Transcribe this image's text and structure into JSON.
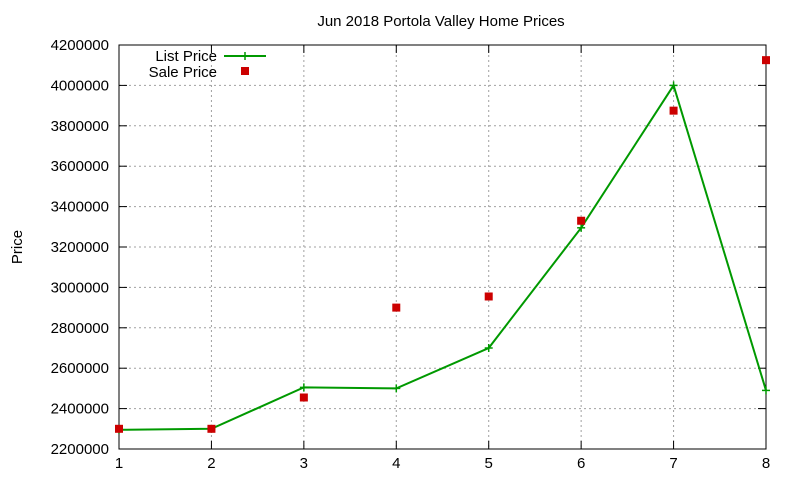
{
  "chart_data": {
    "type": "line",
    "title": "Jun 2018 Portola Valley Home Prices",
    "xlabel": "",
    "ylabel": "Price",
    "x": [
      1,
      2,
      3,
      4,
      5,
      6,
      7,
      8
    ],
    "xlim": [
      1,
      8
    ],
    "ylim": [
      2200000,
      4200000
    ],
    "xticks": [
      "1",
      "2",
      "3",
      "4",
      "5",
      "6",
      "7",
      "8"
    ],
    "yticks": [
      "2200000",
      "2400000",
      "2600000",
      "2800000",
      "3000000",
      "3200000",
      "3400000",
      "3600000",
      "3800000",
      "4000000",
      "4200000"
    ],
    "grid": true,
    "legend_position": "top-left",
    "series": [
      {
        "name": "List Price",
        "style": "line-points",
        "color": "#009900",
        "values": [
          2295000,
          2300000,
          2505000,
          2500000,
          2700000,
          3295000,
          4000000,
          2490000
        ]
      },
      {
        "name": "Sale Price",
        "style": "points",
        "color": "#cc0000",
        "values": [
          2300000,
          2300000,
          2455000,
          2900000,
          2955000,
          3330000,
          3875000,
          4125000
        ]
      }
    ]
  }
}
